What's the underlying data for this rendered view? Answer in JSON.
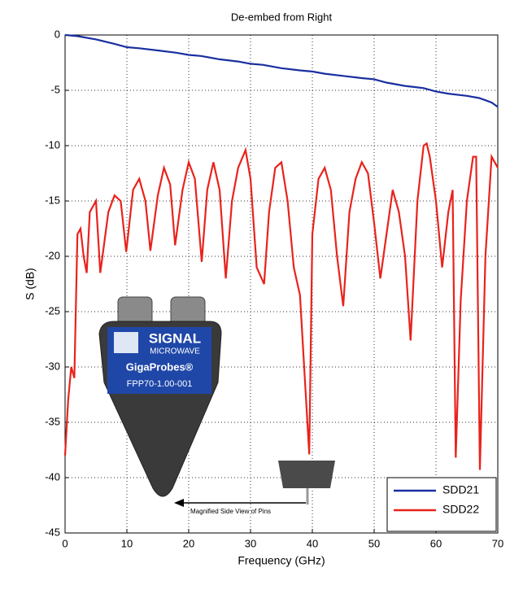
{
  "chart_data": {
    "type": "line",
    "title": "De-embed from Right",
    "x_label": "Frequency (GHz)",
    "y_label": "S (dB)",
    "xlim": [
      0,
      70
    ],
    "ylim": [
      -45,
      0
    ],
    "xticks": [
      0,
      10,
      20,
      30,
      40,
      50,
      60,
      70
    ],
    "yticks": [
      -45,
      -40,
      -35,
      -30,
      -25,
      -20,
      -15,
      -10,
      -5,
      0
    ],
    "grid": true,
    "legend": "lower right",
    "series": [
      {
        "name": "SDD21",
        "color": "#1a2fa0",
        "x": [
          0,
          2,
          5,
          8,
          10,
          12,
          15,
          18,
          20,
          22,
          25,
          28,
          30,
          32,
          35,
          38,
          40,
          42,
          45,
          48,
          50,
          52,
          55,
          58,
          60,
          62,
          65,
          67,
          68,
          69,
          70
        ],
        "values": [
          0,
          -0.1,
          -0.4,
          -0.8,
          -1.1,
          -1.2,
          -1.4,
          -1.6,
          -1.8,
          -1.9,
          -2.2,
          -2.4,
          -2.6,
          -2.7,
          -3.0,
          -3.2,
          -3.3,
          -3.5,
          -3.7,
          -3.9,
          -4.0,
          -4.3,
          -4.6,
          -4.8,
          -5.1,
          -5.3,
          -5.5,
          -5.7,
          -5.9,
          -6.1,
          -6.5
        ]
      },
      {
        "name": "SDD22",
        "color": "#e8231c",
        "x": [
          0,
          0.5,
          1,
          1.5,
          2,
          2.5,
          3,
          3.5,
          4,
          5,
          5.7,
          7,
          8,
          9,
          9.9,
          11,
          12,
          13,
          13.8,
          15,
          16,
          17,
          17.8,
          19,
          20,
          21,
          22.1,
          23,
          24,
          25,
          26,
          27,
          28,
          29.2,
          30,
          31,
          32.2,
          33,
          34,
          35,
          36,
          37,
          38,
          39.5,
          40,
          41,
          42,
          43,
          44,
          45,
          46,
          47,
          48,
          49,
          50,
          51,
          52,
          53,
          54,
          55,
          55.9,
          57,
          58,
          58.5,
          59,
          60,
          61,
          62,
          62.7,
          63.2,
          64,
          65,
          66,
          66.5,
          67.1,
          68,
          69,
          70
        ],
        "values": [
          -38,
          -33,
          -30,
          -31,
          -18,
          -17.5,
          -20,
          -21.5,
          -16,
          -15,
          -21.5,
          -16,
          -14.5,
          -15,
          -19.6,
          -14,
          -13,
          -15,
          -19.5,
          -14.5,
          -12,
          -13.5,
          -19,
          -14,
          -11.5,
          -13,
          -20.5,
          -14,
          -11.5,
          -14,
          -22,
          -15,
          -12,
          -10.4,
          -13,
          -21,
          -22.5,
          -16,
          -12,
          -11.5,
          -15,
          -21,
          -23.5,
          -37.9,
          -18,
          -13,
          -12,
          -14,
          -20,
          -24.5,
          -16,
          -13,
          -11.5,
          -12.5,
          -17,
          -22,
          -18,
          -14,
          -16,
          -20,
          -27.6,
          -15,
          -10,
          -9.8,
          -11,
          -15,
          -21,
          -16,
          -14,
          -38.2,
          -24,
          -15,
          -11,
          -11,
          -39.3,
          -20,
          -11,
          -12
        ]
      }
    ],
    "inset": {
      "brand": "SIGNAL",
      "brand_sub": "MICROWAVE",
      "product": "GigaProbes®",
      "model": "FPP70-1.00-001",
      "caption": "Magnified Side View of Pins"
    }
  }
}
